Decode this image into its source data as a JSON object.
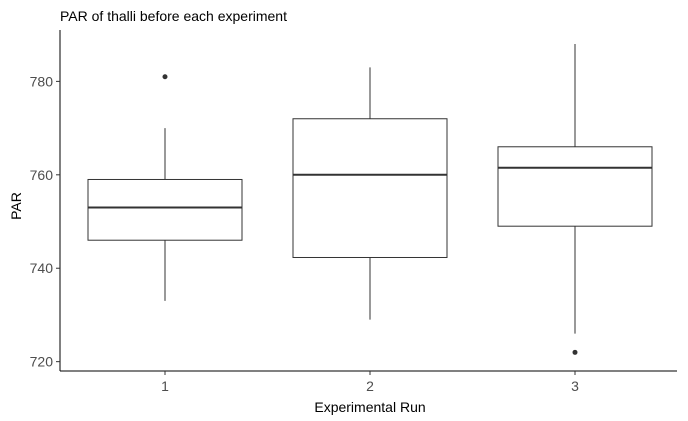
{
  "chart_data": {
    "type": "boxplot",
    "title": "PAR of thalli before each experiment",
    "xlabel": "Experimental Run",
    "ylabel": "PAR",
    "categories": [
      "1",
      "2",
      "3"
    ],
    "ylim": [
      718,
      791
    ],
    "yticks": [
      720,
      740,
      760,
      780
    ],
    "grid": false,
    "boxes": [
      {
        "category": "1",
        "whisker_low": 733,
        "q1": 746,
        "median": 753,
        "q3": 759,
        "whisker_high": 770,
        "outliers": [
          781
        ]
      },
      {
        "category": "2",
        "whisker_low": 729,
        "q1": 742.3,
        "median": 760,
        "q3": 772,
        "whisker_high": 783,
        "outliers": []
      },
      {
        "category": "3",
        "whisker_low": 726,
        "q1": 749,
        "median": 761.5,
        "q3": 766,
        "whisker_high": 788,
        "outliers": [
          722
        ]
      }
    ]
  },
  "colors": {
    "box_fill": "#ffffff",
    "box_stroke": "#333333",
    "axis": "#000000",
    "tick_label": "#4d4d4d"
  }
}
